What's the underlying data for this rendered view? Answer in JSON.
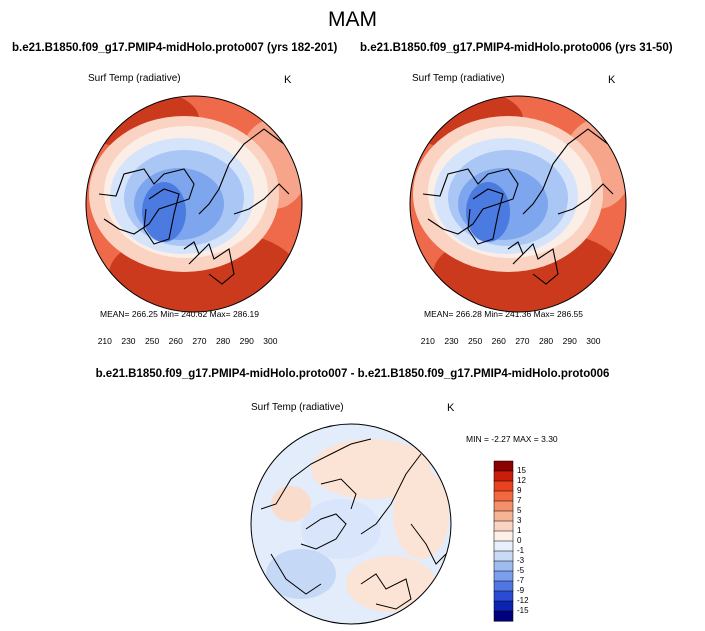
{
  "figure": {
    "season_title": "MAM",
    "colors": {
      "warm_dark": "#cc3a1e",
      "warm_mid": "#ee6a4a",
      "warm_light": "#f6a58a",
      "warm_pale": "#fbd3c2",
      "neutral": "#fbeee6",
      "cool_pale": "#d6e4fb",
      "cool_light": "#aac6f4",
      "cool_mid": "#7da6ee",
      "cool_dark": "#4b7ae0",
      "coast": "#000000"
    }
  },
  "panels": [
    {
      "title": "b.e21.B1850.f09_g17.PMIP4-midHolo.proto007 (yrs 182-201)",
      "variable": "Surf Temp (radiative)",
      "units": "K",
      "mean_text": "MEAN= 266.25  Min= 240.62  Max= 286.19",
      "colorbar_ticks": [
        "210",
        "230",
        "250",
        "260",
        "270",
        "280",
        "290",
        "300"
      ],
      "colorbar_colors": [
        "#08088a",
        "#1a35c8",
        "#3b6fe8",
        "#6e98ef",
        "#9fbef4",
        "#c9dbf8",
        "#ffffff",
        "#fde0d2",
        "#f9b69c",
        "#f58b68",
        "#ec5b38",
        "#d8341a",
        "#b01a0c",
        "#800000"
      ]
    },
    {
      "title": "b.e21.B1850.f09_g17.PMIP4-midHolo.proto006 (yrs 31-50)",
      "variable": "Surf Temp (radiative)",
      "units": "K",
      "mean_text": "MEAN= 266.28  Min= 241.36  Max= 286.55",
      "colorbar_ticks": [
        "210",
        "230",
        "250",
        "260",
        "270",
        "280",
        "290",
        "300"
      ],
      "colorbar_colors": [
        "#08088a",
        "#1a35c8",
        "#3b6fe8",
        "#6e98ef",
        "#9fbef4",
        "#c9dbf8",
        "#ffffff",
        "#fde0d2",
        "#f9b69c",
        "#f58b68",
        "#ec5b38",
        "#d8341a",
        "#b01a0c",
        "#800000"
      ]
    }
  ],
  "difference": {
    "title": "b.e21.B1850.f09_g17.PMIP4-midHolo.proto007 - b.e21.B1850.f09_g17.PMIP4-midHolo.proto006",
    "variable": "Surf Temp (radiative)",
    "units": "K",
    "minmax_text": "MIN =  -2.27 MAX =   3.30",
    "colorbar_ticks": [
      "15",
      "12",
      "9",
      "7",
      "5",
      "3",
      "1",
      "0",
      "-1",
      "-3",
      "-5",
      "-7",
      "-9",
      "-12",
      "-15"
    ],
    "colorbar_colors": [
      "#8b0000",
      "#c81e0a",
      "#e8431e",
      "#f2683f",
      "#f58e6a",
      "#f7b396",
      "#fad4c2",
      "#fdf0e8",
      "#e9f0fb",
      "#c9daf7",
      "#9fbcf2",
      "#7a9fee",
      "#4f76e3",
      "#2a4bd4",
      "#0c22b0",
      "#00007d"
    ]
  },
  "chart_data": [
    {
      "type": "heatmap",
      "title": "b.e21.B1850.f09_g17.PMIP4-midHolo.proto007 (yrs 182-201)",
      "subtitle": "MAM",
      "variable": "Surf Temp (radiative)",
      "units": "K",
      "mean": 266.25,
      "min": 240.62,
      "max": 286.19,
      "colorbar_levels": [
        210,
        230,
        250,
        260,
        270,
        280,
        290,
        300
      ]
    },
    {
      "type": "heatmap",
      "title": "b.e21.B1850.f09_g17.PMIP4-midHolo.proto006 (yrs 31-50)",
      "subtitle": "MAM",
      "variable": "Surf Temp (radiative)",
      "units": "K",
      "mean": 266.28,
      "min": 241.36,
      "max": 286.55,
      "colorbar_levels": [
        210,
        230,
        250,
        260,
        270,
        280,
        290,
        300
      ]
    },
    {
      "type": "heatmap",
      "title": "b.e21.B1850.f09_g17.PMIP4-midHolo.proto007 - b.e21.B1850.f09_g17.PMIP4-midHolo.proto006",
      "variable": "Surf Temp (radiative)",
      "units": "K",
      "min": -2.27,
      "max": 3.3,
      "colorbar_levels": [
        15,
        12,
        9,
        7,
        5,
        3,
        1,
        0,
        -1,
        -3,
        -5,
        -7,
        -9,
        -12,
        -15
      ]
    }
  ]
}
